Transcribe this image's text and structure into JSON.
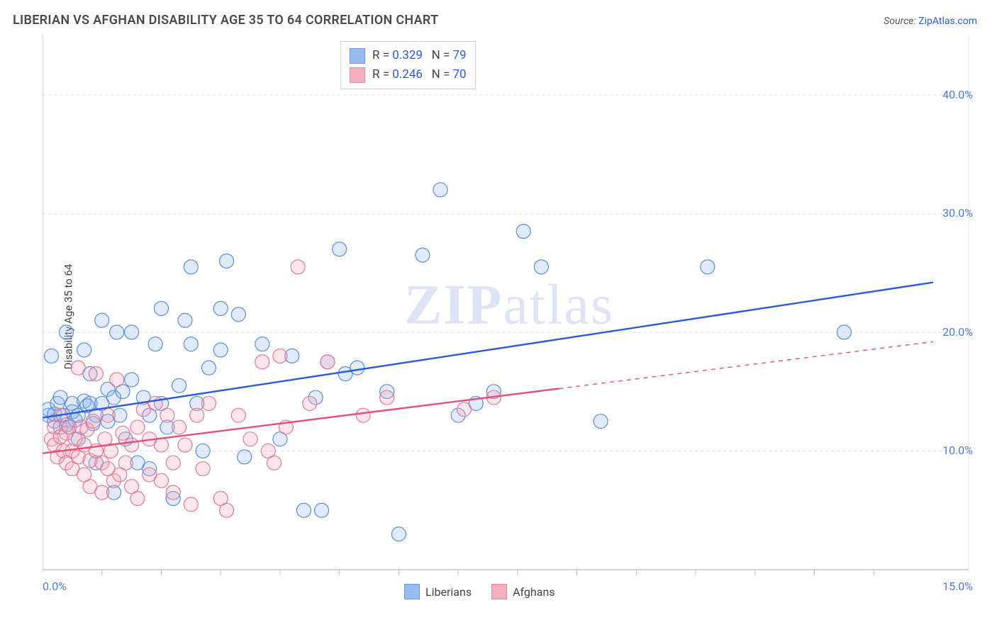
{
  "title": "LIBERIAN VS AFGHAN DISABILITY AGE 35 TO 64 CORRELATION CHART",
  "source_label": "Source:",
  "source_name": "ZipAtlas.com",
  "ylabel": "Disability Age 35 to 64",
  "watermark_zip": "ZIP",
  "watermark_atlas": "atlas",
  "chart": {
    "type": "scatter",
    "xlim": [
      0,
      15
    ],
    "ylim": [
      0,
      45
    ],
    "xticks_minor": [
      1,
      2,
      3,
      4,
      5,
      6,
      7,
      8,
      9,
      10,
      11,
      12,
      13,
      14
    ],
    "xticks_labels": [
      {
        "v": 0.0,
        "t": "0.0%"
      },
      {
        "v": 15.0,
        "t": "15.0%"
      }
    ],
    "yticks": [
      {
        "v": 10.0,
        "t": "10.0%"
      },
      {
        "v": 20.0,
        "t": "20.0%"
      },
      {
        "v": 30.0,
        "t": "30.0%"
      },
      {
        "v": 40.0,
        "t": "40.0%"
      }
    ],
    "grid_color": "#dcdfe4",
    "grid_dash": "4 4",
    "axis_color": "#b9bec7",
    "background_color": "#ffffff",
    "marker_radius": 10,
    "marker_stroke_width": 1.2,
    "marker_fill_opacity": 0.28,
    "line_width": 2.4,
    "series": [
      {
        "name": "Liberians",
        "color_fill": "#8fb4ef",
        "color_stroke": "#5a8ed8",
        "line_color": "#2b5bd7",
        "R": "0.329",
        "N": "79",
        "trend": {
          "x1": 0.0,
          "y1": 12.8,
          "x2": 15.0,
          "y2": 24.2,
          "dash_from_x": null
        },
        "points": [
          [
            0.1,
            13.0
          ],
          [
            0.1,
            13.5
          ],
          [
            0.15,
            18.0
          ],
          [
            0.2,
            12.5
          ],
          [
            0.2,
            13.1
          ],
          [
            0.25,
            14.0
          ],
          [
            0.3,
            12.0
          ],
          [
            0.3,
            14.5
          ],
          [
            0.35,
            13.0
          ],
          [
            0.4,
            12.2
          ],
          [
            0.4,
            20.0
          ],
          [
            0.45,
            12.0
          ],
          [
            0.5,
            13.3
          ],
          [
            0.5,
            14.0
          ],
          [
            0.55,
            12.6
          ],
          [
            0.6,
            13.0
          ],
          [
            0.6,
            11.0
          ],
          [
            0.7,
            14.2
          ],
          [
            0.7,
            18.5
          ],
          [
            0.75,
            13.8
          ],
          [
            0.8,
            14.0
          ],
          [
            0.8,
            16.5
          ],
          [
            0.85,
            12.3
          ],
          [
            0.9,
            13.0
          ],
          [
            0.9,
            9.0
          ],
          [
            1.0,
            14.0
          ],
          [
            1.0,
            21.0
          ],
          [
            1.1,
            12.5
          ],
          [
            1.1,
            15.2
          ],
          [
            1.2,
            14.5
          ],
          [
            1.2,
            6.5
          ],
          [
            1.25,
            20.0
          ],
          [
            1.3,
            13.0
          ],
          [
            1.35,
            15.0
          ],
          [
            1.4,
            11.0
          ],
          [
            1.5,
            16.0
          ],
          [
            1.5,
            20.0
          ],
          [
            1.6,
            9.0
          ],
          [
            1.7,
            14.5
          ],
          [
            1.8,
            13.0
          ],
          [
            1.8,
            8.5
          ],
          [
            1.9,
            19.0
          ],
          [
            2.0,
            22.0
          ],
          [
            2.0,
            14.0
          ],
          [
            2.1,
            12.0
          ],
          [
            2.2,
            6.0
          ],
          [
            2.3,
            15.5
          ],
          [
            2.4,
            21.0
          ],
          [
            2.5,
            25.5
          ],
          [
            2.5,
            19.0
          ],
          [
            2.6,
            14.0
          ],
          [
            2.7,
            10.0
          ],
          [
            2.8,
            17.0
          ],
          [
            3.0,
            18.5
          ],
          [
            3.0,
            22.0
          ],
          [
            3.1,
            26.0
          ],
          [
            3.3,
            21.5
          ],
          [
            3.4,
            9.5
          ],
          [
            3.7,
            19.0
          ],
          [
            4.0,
            11.0
          ],
          [
            4.2,
            18.0
          ],
          [
            4.4,
            5.0
          ],
          [
            4.6,
            14.5
          ],
          [
            4.7,
            5.0
          ],
          [
            4.8,
            17.5
          ],
          [
            5.0,
            27.0
          ],
          [
            5.1,
            16.5
          ],
          [
            5.3,
            17.0
          ],
          [
            5.8,
            15.0
          ],
          [
            6.0,
            3.0
          ],
          [
            6.4,
            26.5
          ],
          [
            6.7,
            32.0
          ],
          [
            7.0,
            13.0
          ],
          [
            7.3,
            14.0
          ],
          [
            7.6,
            15.0
          ],
          [
            8.1,
            28.5
          ],
          [
            8.4,
            25.5
          ],
          [
            9.4,
            12.5
          ],
          [
            11.2,
            25.5
          ],
          [
            13.5,
            20.0
          ]
        ]
      },
      {
        "name": "Afghans",
        "color_fill": "#f3a7b8",
        "color_stroke": "#e07a94",
        "line_color": "#e54f76",
        "R": "0.246",
        "N": "70",
        "trend": {
          "x1": 0.0,
          "y1": 9.8,
          "x2": 15.0,
          "y2": 19.2,
          "dash_from_x": 8.7
        },
        "points": [
          [
            0.15,
            11.0
          ],
          [
            0.2,
            10.5
          ],
          [
            0.2,
            12.0
          ],
          [
            0.25,
            9.5
          ],
          [
            0.3,
            11.2
          ],
          [
            0.3,
            13.0
          ],
          [
            0.35,
            10.0
          ],
          [
            0.4,
            9.0
          ],
          [
            0.4,
            11.5
          ],
          [
            0.45,
            12.0
          ],
          [
            0.5,
            10.0
          ],
          [
            0.5,
            8.5
          ],
          [
            0.55,
            11.0
          ],
          [
            0.6,
            17.0
          ],
          [
            0.6,
            9.5
          ],
          [
            0.65,
            12.0
          ],
          [
            0.7,
            10.5
          ],
          [
            0.7,
            8.0
          ],
          [
            0.75,
            11.8
          ],
          [
            0.8,
            9.2
          ],
          [
            0.8,
            7.0
          ],
          [
            0.85,
            12.5
          ],
          [
            0.9,
            10.0
          ],
          [
            0.9,
            16.5
          ],
          [
            1.0,
            9.0
          ],
          [
            1.0,
            6.5
          ],
          [
            1.05,
            11.0
          ],
          [
            1.1,
            8.5
          ],
          [
            1.1,
            13.0
          ],
          [
            1.15,
            10.0
          ],
          [
            1.2,
            7.5
          ],
          [
            1.25,
            16.0
          ],
          [
            1.3,
            8.0
          ],
          [
            1.35,
            11.5
          ],
          [
            1.4,
            9.0
          ],
          [
            1.5,
            7.0
          ],
          [
            1.5,
            10.5
          ],
          [
            1.6,
            12.0
          ],
          [
            1.6,
            6.0
          ],
          [
            1.7,
            13.5
          ],
          [
            1.8,
            8.0
          ],
          [
            1.8,
            11.0
          ],
          [
            1.9,
            14.0
          ],
          [
            2.0,
            10.5
          ],
          [
            2.0,
            7.5
          ],
          [
            2.1,
            13.0
          ],
          [
            2.2,
            9.0
          ],
          [
            2.2,
            6.5
          ],
          [
            2.3,
            12.0
          ],
          [
            2.4,
            10.5
          ],
          [
            2.5,
            5.5
          ],
          [
            2.6,
            13.0
          ],
          [
            2.7,
            8.5
          ],
          [
            2.8,
            14.0
          ],
          [
            3.0,
            6.0
          ],
          [
            3.1,
            5.0
          ],
          [
            3.3,
            13.0
          ],
          [
            3.5,
            11.0
          ],
          [
            3.7,
            17.5
          ],
          [
            3.8,
            10.0
          ],
          [
            3.9,
            9.0
          ],
          [
            4.0,
            18.0
          ],
          [
            4.1,
            12.0
          ],
          [
            4.3,
            25.5
          ],
          [
            4.5,
            14.0
          ],
          [
            4.8,
            17.5
          ],
          [
            5.4,
            13.0
          ],
          [
            5.8,
            14.5
          ],
          [
            7.1,
            13.5
          ],
          [
            7.6,
            14.5
          ]
        ]
      }
    ],
    "legend_bottom": [
      {
        "label": "Liberians",
        "fill": "#8fb4ef",
        "stroke": "#5a8ed8"
      },
      {
        "label": "Afghans",
        "fill": "#f3a7b8",
        "stroke": "#e07a94"
      }
    ]
  }
}
